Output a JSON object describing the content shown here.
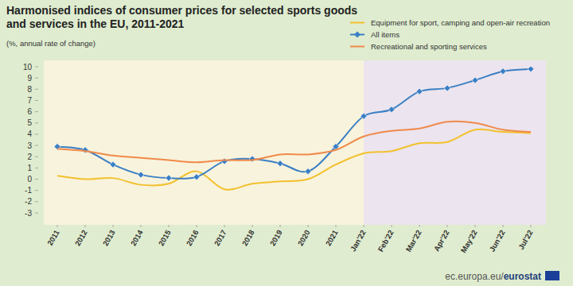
{
  "chart_data": {
    "type": "line",
    "title": [
      "Harmonised indices of consumer prices for selected sports goods",
      "and services in the EU, 2011-2021"
    ],
    "subtitle": "(%, annual rate of change)",
    "footer": {
      "site": "ec.europa.eu/",
      "brand": "eurostat"
    },
    "categories": [
      "2011",
      "2012",
      "2013",
      "2014",
      "2015",
      "2016",
      "2017",
      "2018",
      "2019",
      "2020",
      "2021",
      "Jan'22",
      "Feb'22",
      "Mar'22",
      "Apr'22",
      "May'22",
      "Jun'22",
      "Jul'22"
    ],
    "series": [
      {
        "name": "Equipment for sport, camping and open-air recreation",
        "color": "#f2c12e",
        "marker": "none",
        "values": [
          0.3,
          0.0,
          0.1,
          -0.5,
          -0.4,
          0.7,
          -0.9,
          -0.4,
          -0.2,
          0.0,
          1.3,
          2.3,
          2.5,
          3.2,
          3.3,
          4.4,
          4.2,
          4.1
        ]
      },
      {
        "name": "All items",
        "color": "#3a7fc4",
        "marker": "diamond",
        "values": [
          2.9,
          2.6,
          1.3,
          0.4,
          0.1,
          0.2,
          1.6,
          1.8,
          1.4,
          0.7,
          2.9,
          5.6,
          6.2,
          7.8,
          8.1,
          8.8,
          9.6,
          9.8
        ]
      },
      {
        "name": "Recreational and sporting services",
        "color": "#f08a4b",
        "marker": "none",
        "values": [
          2.7,
          2.5,
          2.1,
          1.9,
          1.7,
          1.5,
          1.7,
          1.7,
          2.2,
          2.2,
          2.6,
          3.8,
          4.3,
          4.5,
          5.1,
          5.0,
          4.4,
          4.2
        ]
      }
    ],
    "ylim": [
      -3,
      10
    ],
    "yticks": [
      -3,
      -2,
      -1,
      0,
      1,
      2,
      3,
      4,
      5,
      6,
      7,
      8,
      9,
      10
    ],
    "grid": false,
    "legend": "top-right"
  }
}
